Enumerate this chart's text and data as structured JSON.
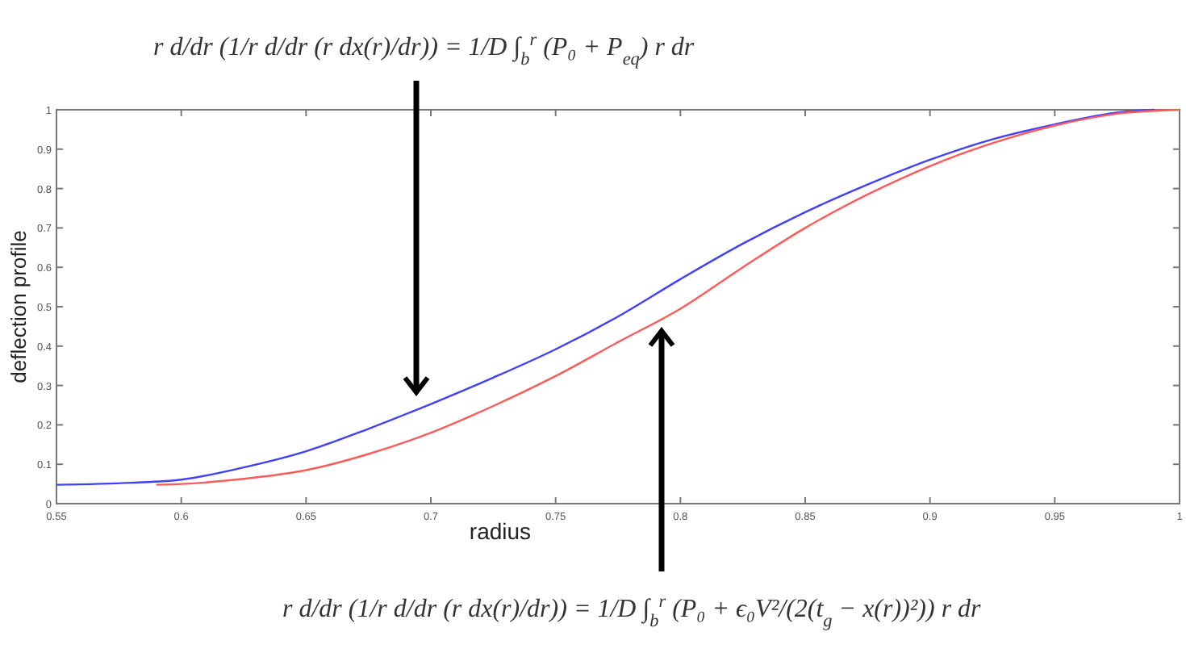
{
  "chart_data": {
    "type": "line",
    "xlabel": "radius",
    "ylabel": "deflection profile",
    "xlim": [
      0.55,
      1
    ],
    "xticks": [
      0.55,
      0.6,
      0.65,
      0.7,
      0.75,
      0.8,
      0.85,
      0.9,
      0.95,
      1
    ],
    "ylim": [
      0,
      1
    ],
    "yticks": [
      0,
      0.1,
      0.2,
      0.3,
      0.4,
      0.5,
      0.6,
      0.7,
      0.8,
      0.9,
      1
    ],
    "grid": false,
    "line_style": "solid",
    "series": [
      {
        "color": "#4040ff",
        "x": [
          0.55,
          0.58,
          0.6,
          0.625,
          0.65,
          0.675,
          0.7,
          0.725,
          0.75,
          0.775,
          0.8,
          0.825,
          0.85,
          0.875,
          0.9,
          0.925,
          0.95,
          0.975,
          0.99
        ],
        "values": [
          0.048,
          0.053,
          0.061,
          0.092,
          0.133,
          0.19,
          0.253,
          0.32,
          0.392,
          0.475,
          0.57,
          0.66,
          0.74,
          0.81,
          0.873,
          0.925,
          0.963,
          0.993,
          1
        ]
      },
      {
        "color": "#ff5a5a",
        "x": [
          0.59,
          0.6,
          0.625,
          0.65,
          0.675,
          0.7,
          0.725,
          0.75,
          0.775,
          0.8,
          0.825,
          0.85,
          0.875,
          0.9,
          0.925,
          0.95,
          0.975,
          1
        ],
        "values": [
          0.048,
          0.05,
          0.063,
          0.085,
          0.126,
          0.18,
          0.248,
          0.324,
          0.41,
          0.495,
          0.6,
          0.7,
          0.785,
          0.857,
          0.915,
          0.96,
          0.99,
          1
        ]
      }
    ],
    "annotations": [
      "r d/dr (1/r d/dr (r dx(r)/dr)) = 1/D ∫$_{b}$$^{r}$ (P₀ + P$_{eq}$) r dr",
      "r d/dr (1/r d/dr (r dx(r)/dr)) = 1/D ∫$_{b}$$^{r}$ (P₀ + ϵ₀V²/(2(t$_{g}$ − x(r))²)) r dr"
    ]
  }
}
